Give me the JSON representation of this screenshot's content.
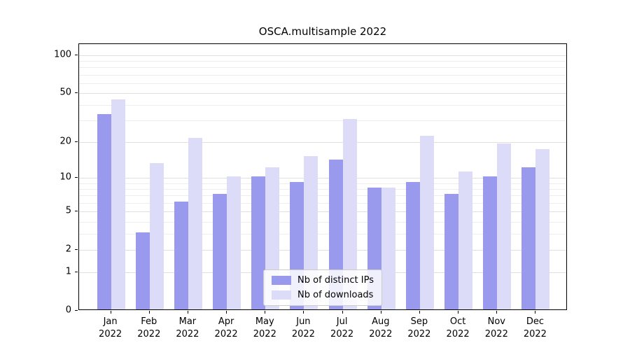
{
  "chart_data": {
    "type": "bar",
    "title": "OSCA.multisample 2022",
    "categories": [
      "Jan",
      "Feb",
      "Mar",
      "Apr",
      "May",
      "Jun",
      "Jul",
      "Aug",
      "Sep",
      "Oct",
      "Nov",
      "Dec"
    ],
    "category_year": "2022",
    "series": [
      {
        "name": "Nb of distinct IPs",
        "color": "#9999ee",
        "values": [
          33,
          3,
          6,
          7,
          10,
          9,
          14,
          8,
          9,
          7,
          10,
          12
        ]
      },
      {
        "name": "Nb of downloads",
        "color": "#dcdcf8",
        "values": [
          43,
          13,
          21,
          10,
          12,
          15,
          30,
          8,
          22,
          11,
          19,
          17
        ]
      }
    ],
    "yscale": "log1p",
    "ylim": [
      0,
      122
    ],
    "y_ticks": [
      0,
      1,
      2,
      5,
      10,
      20,
      50,
      100
    ],
    "y_minor_ticks": [
      3,
      4,
      6,
      7,
      8,
      9,
      30,
      40,
      60,
      70,
      80,
      90
    ],
    "xlabel": "",
    "ylabel": "",
    "grid": true,
    "legend_position": "lower center"
  }
}
